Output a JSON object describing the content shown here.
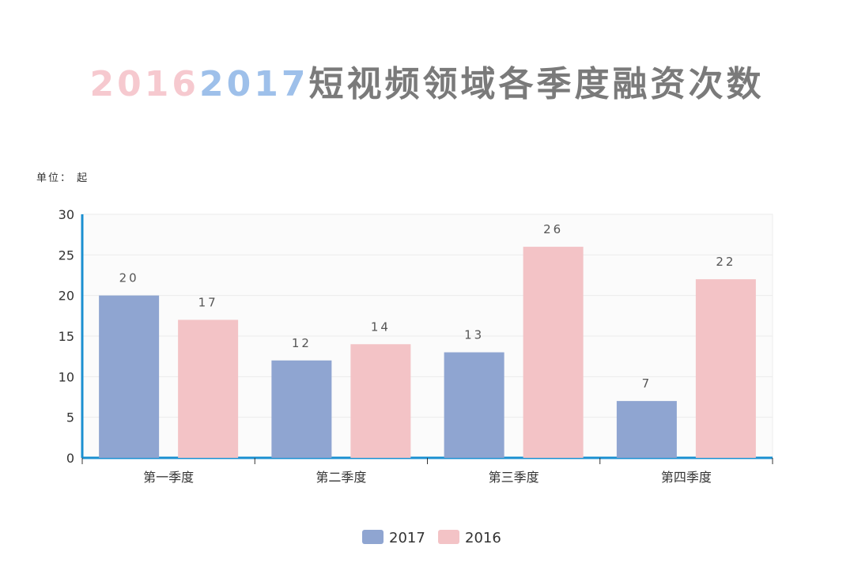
{
  "chart_data": {
    "type": "bar",
    "title": {
      "part_2016": "2016",
      "part_2017": "2017",
      "part_rest": "短视频领域各季度融资次数"
    },
    "unit_label": "单位： 起",
    "categories": [
      "第一季度",
      "第二季度",
      "第三季度",
      "第四季度"
    ],
    "series": [
      {
        "name": "2017",
        "values": [
          20,
          12,
          13,
          7
        ],
        "color": "#8fa5d1"
      },
      {
        "name": "2016",
        "values": [
          17,
          14,
          26,
          22
        ],
        "color": "#f3c3c6"
      }
    ],
    "ylim": [
      0,
      30
    ],
    "yticks": [
      0,
      5,
      10,
      15,
      20,
      25,
      30
    ],
    "grid": true,
    "legend_position": "bottom-center",
    "axis_color": "#1a8fd0"
  }
}
